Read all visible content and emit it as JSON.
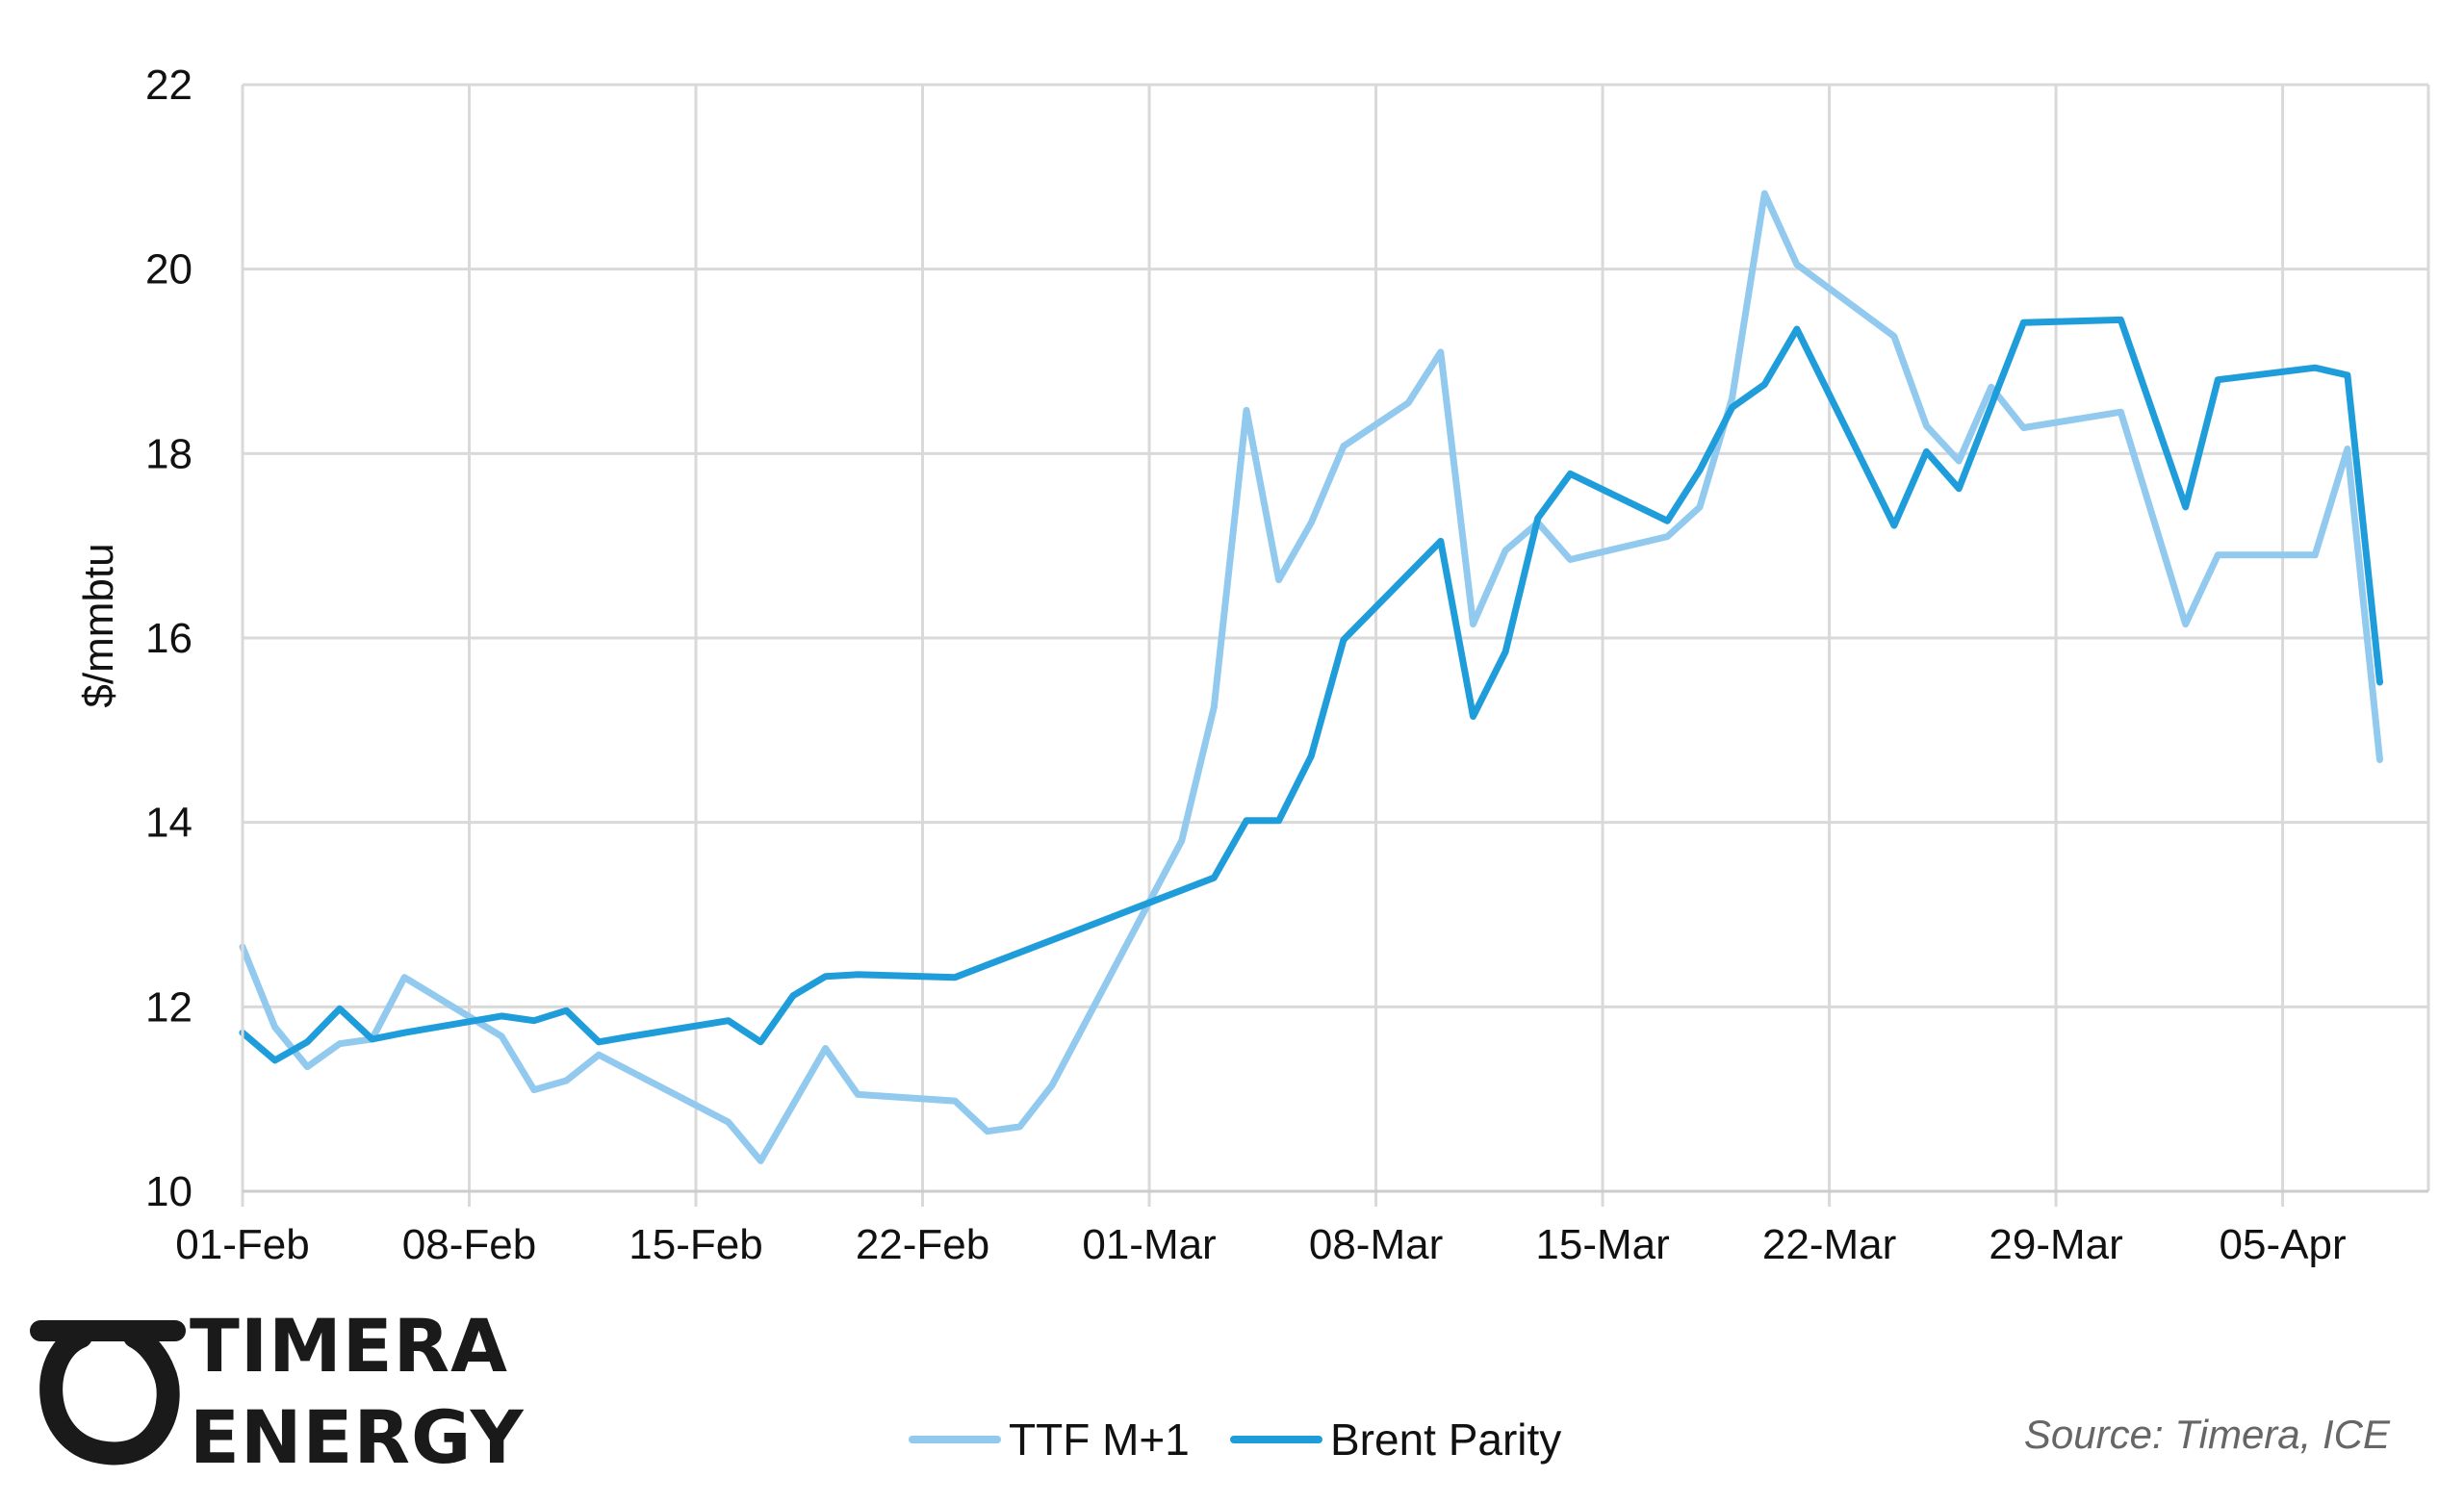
{
  "chart_data": {
    "type": "line",
    "title": "",
    "xlabel": "",
    "ylabel": "$/mmbtu",
    "ylim": [
      10,
      22
    ],
    "yticks": [
      10,
      12,
      14,
      16,
      18,
      20,
      22
    ],
    "xlim": [
      "2021-02-01",
      "2021-04-07"
    ],
    "xticks": [
      {
        "date": "2021-02-01",
        "label": "01-Feb"
      },
      {
        "date": "2021-02-08",
        "label": "08-Feb"
      },
      {
        "date": "2021-02-15",
        "label": "15-Feb"
      },
      {
        "date": "2021-02-22",
        "label": "22-Feb"
      },
      {
        "date": "2021-03-01",
        "label": "01-Mar"
      },
      {
        "date": "2021-03-08",
        "label": "08-Mar"
      },
      {
        "date": "2021-03-15",
        "label": "15-Mar"
      },
      {
        "date": "2021-03-22",
        "label": "22-Mar"
      },
      {
        "date": "2021-03-29",
        "label": "29-Mar"
      },
      {
        "date": "2021-04-05",
        "label": "05-Apr"
      }
    ],
    "grid": true,
    "legend_position": "bottom-center",
    "series": [
      {
        "name": "TTF M+1",
        "color": "#92c9ee",
        "points": [
          [
            "2021-02-01",
            12.65
          ],
          [
            "2021-02-02",
            11.78
          ],
          [
            "2021-02-03",
            11.35
          ],
          [
            "2021-02-04",
            11.6
          ],
          [
            "2021-02-05",
            11.65
          ],
          [
            "2021-02-06",
            12.32
          ],
          [
            "2021-02-09",
            11.68
          ],
          [
            "2021-02-10",
            11.1
          ],
          [
            "2021-02-11",
            11.2
          ],
          [
            "2021-02-12",
            11.48
          ],
          [
            "2021-02-16",
            10.75
          ],
          [
            "2021-02-17",
            10.33
          ],
          [
            "2021-02-19",
            11.55
          ],
          [
            "2021-02-20",
            11.05
          ],
          [
            "2021-02-23",
            10.98
          ],
          [
            "2021-02-24",
            10.65
          ],
          [
            "2021-02-25",
            10.7
          ],
          [
            "2021-02-26",
            11.15
          ],
          [
            "2021-03-02",
            13.8
          ],
          [
            "2021-03-03",
            15.25
          ],
          [
            "2021-03-04",
            18.47
          ],
          [
            "2021-03-05",
            16.63
          ],
          [
            "2021-03-06",
            17.25
          ],
          [
            "2021-03-07",
            18.08
          ],
          [
            "2021-03-09",
            18.55
          ],
          [
            "2021-03-10",
            19.1
          ],
          [
            "2021-03-11",
            16.15
          ],
          [
            "2021-03-12",
            16.95
          ],
          [
            "2021-03-13",
            17.25
          ],
          [
            "2021-03-14",
            16.85
          ],
          [
            "2021-03-17",
            17.1
          ],
          [
            "2021-03-18",
            17.42
          ],
          [
            "2021-03-19",
            18.6
          ],
          [
            "2021-03-20",
            20.82
          ],
          [
            "2021-03-21",
            20.05
          ],
          [
            "2021-03-24",
            19.27
          ],
          [
            "2021-03-25",
            18.3
          ],
          [
            "2021-03-26",
            17.92
          ],
          [
            "2021-03-27",
            18.72
          ],
          [
            "2021-03-28",
            18.28
          ],
          [
            "2021-03-31",
            18.45
          ],
          [
            "2021-04-02",
            16.15
          ],
          [
            "2021-04-03",
            16.9
          ],
          [
            "2021-04-06",
            16.9
          ],
          [
            "2021-04-07",
            18.05
          ],
          [
            "2021-04-08",
            14.68
          ]
        ]
      },
      {
        "name": "Brent Parity",
        "color": "#1f9ddb",
        "points": [
          [
            "2021-02-01",
            11.72
          ],
          [
            "2021-02-02",
            11.42
          ],
          [
            "2021-02-03",
            11.62
          ],
          [
            "2021-02-04",
            11.98
          ],
          [
            "2021-02-05",
            11.65
          ],
          [
            "2021-02-06",
            11.72
          ],
          [
            "2021-02-09",
            11.9
          ],
          [
            "2021-02-10",
            11.85
          ],
          [
            "2021-02-11",
            11.96
          ],
          [
            "2021-02-12",
            11.62
          ],
          [
            "2021-02-13",
            11.68
          ],
          [
            "2021-02-16",
            11.85
          ],
          [
            "2021-02-17",
            11.62
          ],
          [
            "2021-02-18",
            12.12
          ],
          [
            "2021-02-19",
            12.33
          ],
          [
            "2021-02-20",
            12.35
          ],
          [
            "2021-02-23",
            12.32
          ],
          [
            "2021-03-03",
            13.4
          ],
          [
            "2021-03-04",
            14.02
          ],
          [
            "2021-03-05",
            14.02
          ],
          [
            "2021-03-06",
            14.72
          ],
          [
            "2021-03-07",
            15.98
          ],
          [
            "2021-03-10",
            17.05
          ],
          [
            "2021-03-11",
            15.15
          ],
          [
            "2021-03-12",
            15.85
          ],
          [
            "2021-03-13",
            17.3
          ],
          [
            "2021-03-14",
            17.78
          ],
          [
            "2021-03-17",
            17.27
          ],
          [
            "2021-03-18",
            17.82
          ],
          [
            "2021-03-19",
            18.5
          ],
          [
            "2021-03-20",
            18.75
          ],
          [
            "2021-03-21",
            19.35
          ],
          [
            "2021-03-24",
            17.22
          ],
          [
            "2021-03-25",
            18.02
          ],
          [
            "2021-03-26",
            17.62
          ],
          [
            "2021-03-28",
            19.42
          ],
          [
            "2021-03-31",
            19.45
          ],
          [
            "2021-04-02",
            17.42
          ],
          [
            "2021-04-03",
            18.8
          ],
          [
            "2021-04-06",
            18.93
          ],
          [
            "2021-04-07",
            18.85
          ],
          [
            "2021-04-08",
            15.52
          ]
        ]
      }
    ],
    "source": "Source: Timera, ICE"
  },
  "branding": {
    "logo_line1": "TIMERA",
    "logo_line2": "ENERGY"
  }
}
